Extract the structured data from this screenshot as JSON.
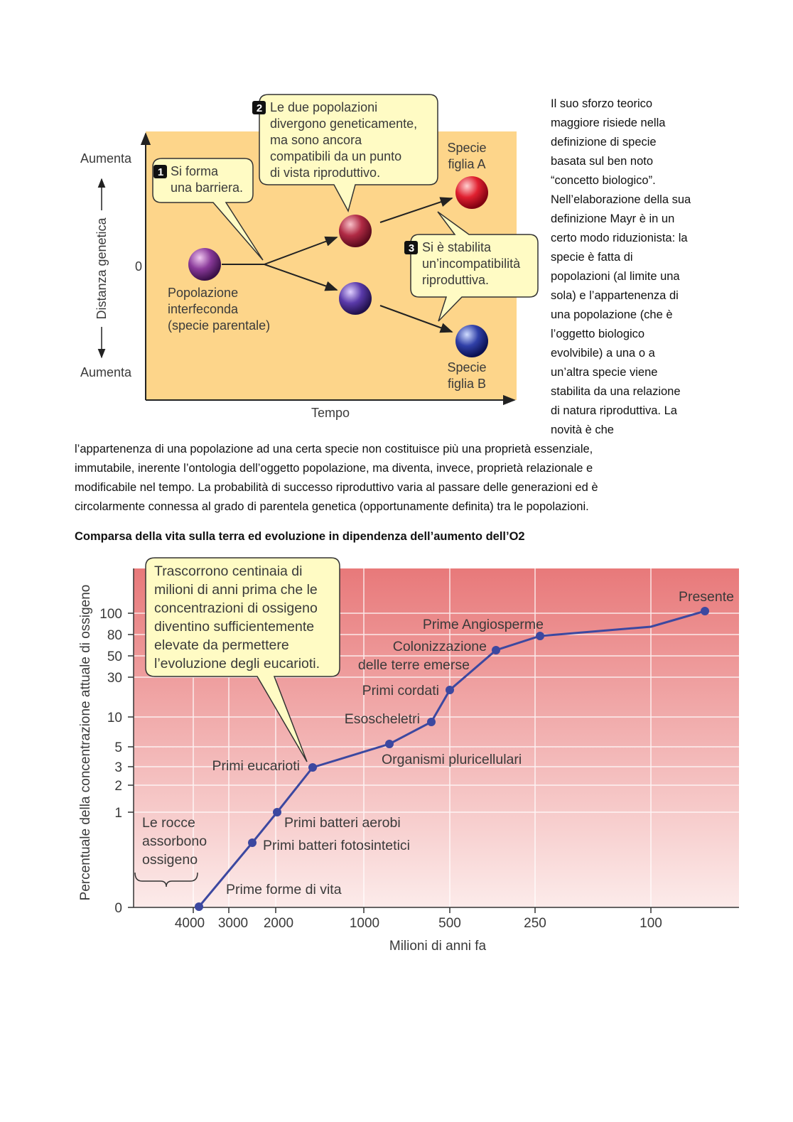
{
  "figure1": {
    "y_top_label": "Aumenta",
    "y_bottom_label": "Aumenta",
    "y_zero": "0",
    "y_axis_title": "Distanza genetica",
    "x_axis_title": "Tempo",
    "parent_label": [
      "Popolazione",
      "interfeconda",
      "(specie parentale)"
    ],
    "daughter_a": [
      "Specie",
      "figlia A"
    ],
    "daughter_b": [
      "Specie",
      "figlia B"
    ],
    "callouts": [
      {
        "number": "1",
        "lines": [
          "Si forma",
          "una barriera."
        ]
      },
      {
        "number": "2",
        "lines": [
          "Le due popolazioni",
          "divergono geneticamente,",
          "ma sono ancora",
          "compatibili da un punto",
          "di vista riproduttivo."
        ]
      },
      {
        "number": "3",
        "lines": [
          "Si è stabilita",
          "un’incompatibilità",
          "riproduttiva."
        ]
      }
    ]
  },
  "text": {
    "side_lines": [
      "Il suo sforzo teorico",
      "maggiore risiede nella",
      "definizione di specie",
      "basata sul ben noto",
      "“concetto biologico”.",
      "Nell’elaborazione della sua",
      "definizione Mayr è in un",
      "certo modo riduzionista: la",
      "specie è fatta di",
      "popolazioni (al limite una",
      "sola) e l’appartenenza di",
      "una popolazione (che è",
      "l’oggetto biologico",
      "evolvibile) a una o a",
      "un’altra specie viene",
      "stabilita da una relazione",
      "di natura riproduttiva. La",
      "novità è che"
    ],
    "full_lines": [
      "l’appartenenza di una popolazione ad una certa specie non costituisce più una proprietà essenziale,",
      "immutabile, inerente l’ontologia dell’oggetto popolazione, ma diventa, invece, proprietà relazionale e",
      "modificabile nel tempo. La probabilità di successo riproduttivo varia al passare delle generazioni ed è",
      "circolarmente connessa al grado di parentela genetica (opportunamente definita) tra le popolazioni."
    ],
    "heading": "Comparsa della vita sulla terra ed evoluzione in dipendenza dell’aumento dell’O2"
  },
  "figure2": {
    "y_axis_title": "Percentuale della concentrazione attuale di ossigeno",
    "x_axis_title": "Milioni di anni fa",
    "yticks": [
      "100",
      "80",
      "50",
      "30",
      "10",
      "5",
      "3",
      "2",
      "1",
      "0"
    ],
    "xticks": [
      "4000",
      "3000",
      "2000",
      "1000",
      "500",
      "250",
      "100"
    ],
    "callout": [
      "Trascorrono centinaia di",
      "milioni di anni prima che le",
      "concentrazioni di ossigeno",
      "diventino sufficientemente",
      "elevate da permettere",
      "l’evoluzione degli eucarioti."
    ],
    "rocks": [
      "Le rocce",
      "assorbono",
      "ossigeno"
    ],
    "events": [
      "Prime forme di vita",
      "Primi batteri fotosintetici",
      "Primi batteri aerobi",
      "Primi eucarioti",
      "Organismi pluricellulari",
      "Esoscheletri",
      "Primi cordati",
      "Colonizzazione",
      "delle terre emerse",
      "Prime Angiosperme",
      "Presente"
    ]
  }
}
